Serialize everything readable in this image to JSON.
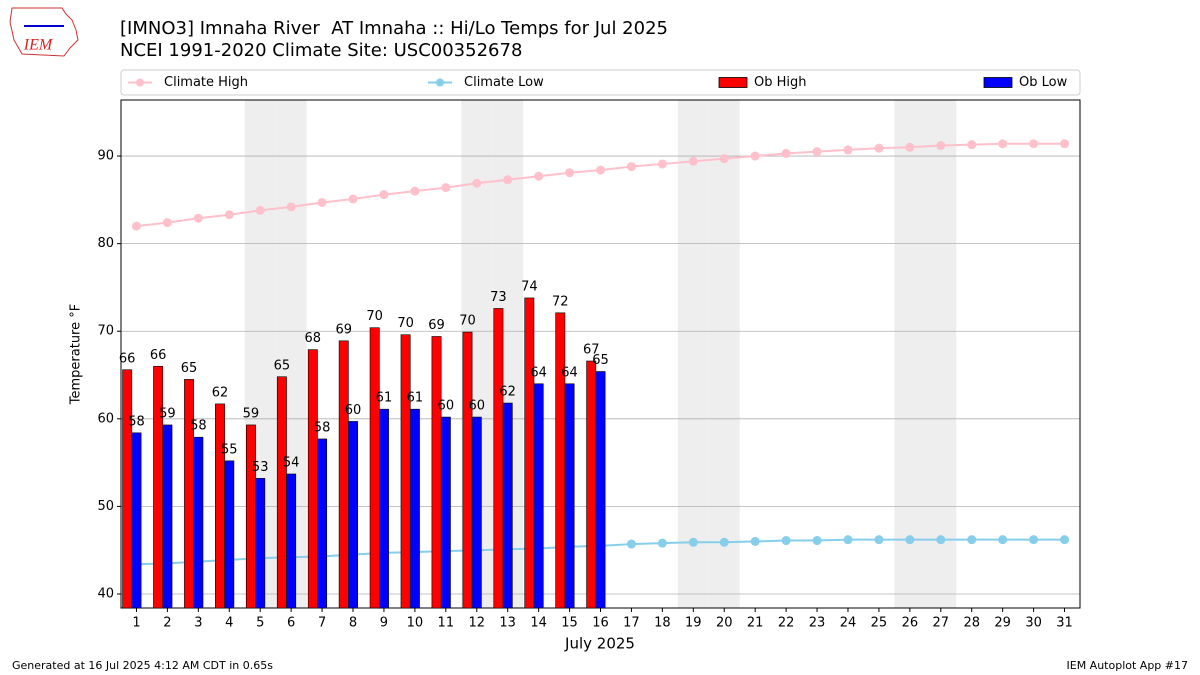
{
  "chart_data": {
    "type": "bar",
    "title": "[IMNO3] Imnaha River  AT Imnaha :: Hi/Lo Temps for Jul 2025",
    "subtitle": "NCEI 1991-2020 Climate Site: USC00352678",
    "xlabel": "July 2025",
    "ylabel": "Temperature °F",
    "x": [
      1,
      2,
      3,
      4,
      5,
      6,
      7,
      8,
      9,
      10,
      11,
      12,
      13,
      14,
      15,
      16,
      17,
      18,
      19,
      20,
      21,
      22,
      23,
      24,
      25,
      26,
      27,
      28,
      29,
      30,
      31
    ],
    "xticks": [
      1,
      2,
      3,
      4,
      5,
      6,
      7,
      8,
      9,
      10,
      11,
      12,
      13,
      14,
      15,
      16,
      17,
      18,
      19,
      20,
      21,
      22,
      23,
      24,
      25,
      26,
      27,
      28,
      29,
      30,
      31
    ],
    "xlim": [
      0.5,
      31.5
    ],
    "ylim": [
      38.4,
      96.4
    ],
    "yticks": [
      40,
      50,
      60,
      70,
      80,
      90
    ],
    "grid": true,
    "shaded_days": [
      5,
      6,
      12,
      13,
      19,
      20,
      26,
      27
    ],
    "series": [
      {
        "name": "Climate High",
        "type": "line",
        "color": "#ffc0cb",
        "values": [
          82.0,
          82.4,
          82.9,
          83.3,
          83.8,
          84.2,
          84.7,
          85.1,
          85.6,
          86.0,
          86.4,
          86.9,
          87.3,
          87.7,
          88.1,
          88.4,
          88.8,
          89.1,
          89.4,
          89.7,
          90.0,
          90.3,
          90.5,
          90.7,
          90.9,
          91.0,
          91.2,
          91.3,
          91.4,
          91.4,
          91.4
        ]
      },
      {
        "name": "Climate Low",
        "type": "line",
        "color": "#87ceeb",
        "values": [
          43.4,
          43.5,
          43.7,
          43.9,
          44.1,
          44.2,
          44.3,
          44.5,
          44.7,
          44.8,
          44.9,
          45.0,
          45.1,
          45.2,
          45.4,
          45.5,
          45.7,
          45.8,
          45.9,
          45.9,
          46.0,
          46.1,
          46.1,
          46.2,
          46.2,
          46.2,
          46.2,
          46.2,
          46.2,
          46.2,
          46.2
        ]
      },
      {
        "name": "Ob High",
        "type": "bar",
        "color": "#ff0000",
        "values": [
          65.6,
          66.0,
          64.5,
          61.7,
          59.3,
          64.8,
          67.9,
          68.9,
          70.4,
          69.6,
          69.4,
          69.9,
          72.6,
          73.8,
          72.1,
          66.6,
          null,
          null,
          null,
          null,
          null,
          null,
          null,
          null,
          null,
          null,
          null,
          null,
          null,
          null,
          null
        ],
        "value_labels": [
          "66",
          "66",
          "65",
          "62",
          "59",
          "65",
          "68",
          "69",
          "70",
          "70",
          "69",
          "70",
          "73",
          "74",
          "72",
          "67",
          null,
          null,
          null,
          null,
          null,
          null,
          null,
          null,
          null,
          null,
          null,
          null,
          null,
          null,
          null
        ]
      },
      {
        "name": "Ob Low",
        "type": "bar",
        "color": "#0000ff",
        "values": [
          58.4,
          59.3,
          57.9,
          55.2,
          53.2,
          53.7,
          57.7,
          59.7,
          61.1,
          61.1,
          60.2,
          60.2,
          61.8,
          64.0,
          64.0,
          65.4,
          null,
          null,
          null,
          null,
          null,
          null,
          null,
          null,
          null,
          null,
          null,
          null,
          null,
          null,
          null
        ],
        "value_labels": [
          "58",
          "59",
          "58",
          "55",
          "53",
          "54",
          "58",
          "60",
          "61",
          "61",
          "60",
          "60",
          "62",
          "64",
          "64",
          "65",
          null,
          null,
          null,
          null,
          null,
          null,
          null,
          null,
          null,
          null,
          null,
          null,
          null,
          null,
          null
        ]
      }
    ]
  },
  "logo": "IEM",
  "footer": {
    "left": "Generated at 16 Jul 2025 4:12 AM CDT in 0.65s",
    "right": "IEM Autoplot App #17"
  }
}
